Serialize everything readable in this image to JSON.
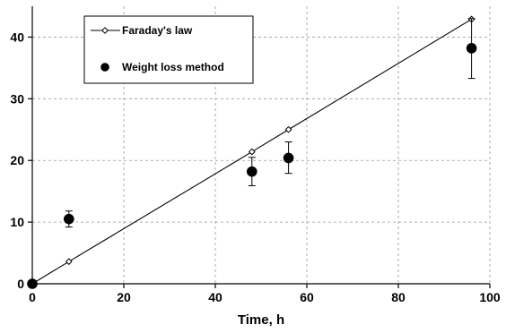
{
  "chart_data": {
    "type": "scatter",
    "title": "",
    "xlabel": "Time, h",
    "ylabel": "",
    "xlim": [
      0,
      100
    ],
    "ylim": [
      0,
      45
    ],
    "xticks": [
      0,
      20,
      40,
      60,
      80,
      100
    ],
    "yticks": [
      0,
      10,
      20,
      30,
      40
    ],
    "xtick_labels": [
      "0",
      "20",
      "40",
      "60",
      "80",
      "100"
    ],
    "ytick_labels": [
      "0",
      "10",
      "20",
      "30",
      "40"
    ],
    "grid": true,
    "legend_position": "top-left",
    "series": [
      {
        "name": "Faraday's law",
        "style": "line-with-open-diamond-markers",
        "color": "#000000",
        "x": [
          0,
          8,
          48,
          56,
          96
        ],
        "y": [
          0,
          3.6,
          21.4,
          25.0,
          42.9
        ]
      },
      {
        "name": "Weight loss method",
        "style": "filled-circle-markers-with-error-bars",
        "color": "#000000",
        "x": [
          0,
          8,
          48,
          56,
          96
        ],
        "y": [
          0,
          10.5,
          18.2,
          20.4,
          38.2
        ],
        "error_low": [
          0,
          9.2,
          15.9,
          17.9,
          33.3
        ],
        "error_high": [
          0,
          11.8,
          20.5,
          23.0,
          43.0
        ]
      }
    ]
  }
}
